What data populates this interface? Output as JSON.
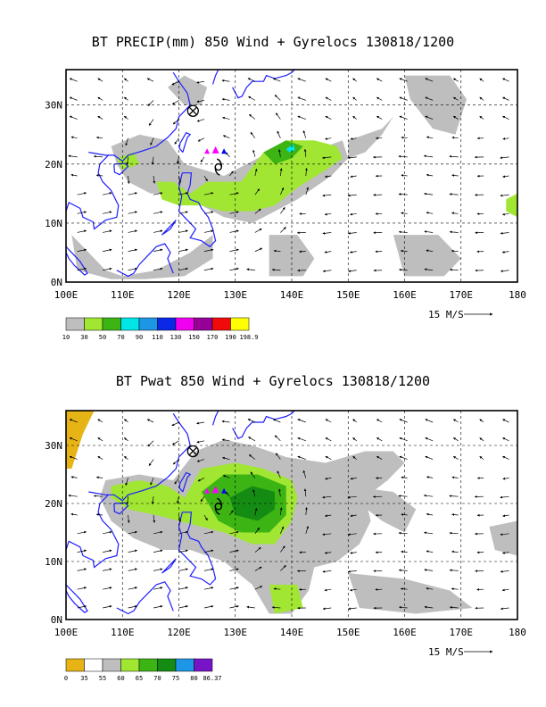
{
  "panels": [
    {
      "title": "BT PRECIP(mm) 850 Wind + Gyrelocs 130818/1200",
      "lat_labels": [
        "30N",
        "20N",
        "10N",
        "0N"
      ],
      "lon_labels": [
        "100E",
        "110E",
        "120E",
        "130E",
        "140E",
        "150E",
        "160E",
        "170E",
        "180"
      ],
      "vector_ref": "15 M/S",
      "colorbar": {
        "colors": [
          "#bebebe",
          "#a0e632",
          "#3cb414",
          "#00e6e6",
          "#1e96e6",
          "#0a28e6",
          "#f000f0",
          "#960096",
          "#f00a0a",
          "#ffff00"
        ],
        "labels": [
          "10",
          "30",
          "50",
          "70",
          "90",
          "110",
          "130",
          "150",
          "170",
          "190",
          "198.9"
        ]
      }
    },
    {
      "title": "BT Pwat 850 Wind + Gyrelocs 130818/1200",
      "lat_labels": [
        "30N",
        "20N",
        "10N",
        "0N"
      ],
      "lon_labels": [
        "100E",
        "110E",
        "120E",
        "130E",
        "140E",
        "150E",
        "160E",
        "170E",
        "180"
      ],
      "vector_ref": "15 M/S",
      "colorbar": {
        "colors": [
          "#e6b414",
          "#ffffff",
          "#bebebe",
          "#a0e632",
          "#3cb414",
          "#148c14",
          "#1e96e6",
          "#7814c8"
        ],
        "labels": [
          "0",
          "35",
          "55",
          "60",
          "65",
          "70",
          "75",
          "80",
          "86.37"
        ]
      }
    }
  ],
  "markers": {
    "storm": "tropical-cyclone-symbol",
    "gyre": "circle-x-symbol",
    "triangle_colors": [
      "#ff00ff",
      "#0000ff"
    ]
  },
  "chart_data": [
    {
      "type": "heatmap",
      "title": "BT PRECIP(mm) 850 Wind + Gyrelocs 130818/1200",
      "xlabel": "",
      "ylabel": "",
      "xlim": [
        100,
        180
      ],
      "ylim": [
        0,
        36
      ],
      "x_ticks": [
        100,
        110,
        120,
        130,
        140,
        150,
        160,
        170,
        180
      ],
      "y_ticks": [
        0,
        10,
        20,
        30
      ],
      "grid": true,
      "field": "precipitation (mm)",
      "levels": [
        10,
        30,
        50,
        70,
        90,
        110,
        130,
        150,
        170,
        190,
        198.9
      ],
      "gyre_center": {
        "lon": 122.5,
        "lat": 29
      },
      "storm_center": {
        "lon": 127,
        "lat": 19.5
      },
      "regions": [
        {
          "name": "p-gray-scs",
          "level": 10,
          "pts": [
            [
              108,
              23
            ],
            [
              113,
              25
            ],
            [
              118,
              24
            ],
            [
              121,
              20
            ],
            [
              128,
              18
            ],
            [
              136,
              22
            ],
            [
              142,
              24
            ],
            [
              146,
              23
            ],
            [
              149,
              24
            ],
            [
              150,
              21
            ],
            [
              147,
              18
            ],
            [
              141,
              14
            ],
            [
              137,
              12
            ],
            [
              133,
              10
            ],
            [
              128,
              11
            ],
            [
              124,
              13
            ],
            [
              121,
              14
            ],
            [
              118,
              15
            ],
            [
              115,
              15
            ],
            [
              111,
              17
            ],
            [
              109,
              20
            ]
          ]
        },
        {
          "name": "p-gray-east",
          "level": 10,
          "pts": [
            [
              150,
              24
            ],
            [
              156,
              26
            ],
            [
              158,
              28
            ],
            [
              156,
              25
            ],
            [
              153,
              22
            ],
            [
              150,
              21
            ]
          ]
        },
        {
          "name": "p-gray-north",
          "level": 10,
          "pts": [
            [
              118,
              33
            ],
            [
              121,
              35
            ],
            [
              125,
              33
            ],
            [
              124,
              30
            ],
            [
              121,
              30
            ]
          ]
        },
        {
          "name": "p-gray-sw",
          "level": 10,
          "pts": [
            [
              101,
              8
            ],
            [
              103,
              6
            ],
            [
              107,
              2
            ],
            [
              110,
              1
            ],
            [
              116,
              2
            ],
            [
              122,
              5
            ],
            [
              126,
              8
            ],
            [
              126,
              4
            ],
            [
              121,
              1
            ],
            [
              114,
              0.5
            ],
            [
              108,
              0.5
            ],
            [
              102,
              2
            ]
          ]
        },
        {
          "name": "p-gray-mid",
          "level": 10,
          "pts": [
            [
              136,
              8
            ],
            [
              141,
              8
            ],
            [
              144,
              4
            ],
            [
              142,
              1
            ],
            [
              136,
              1
            ]
          ]
        },
        {
          "name": "p-gray-ne",
          "level": 10,
          "pts": [
            [
              160,
              35
            ],
            [
              168,
              35
            ],
            [
              171,
              31
            ],
            [
              169,
              25
            ],
            [
              165,
              26
            ],
            [
              161,
              31
            ]
          ]
        },
        {
          "name": "p-gray-se",
          "level": 10,
          "pts": [
            [
              158,
              8
            ],
            [
              166,
              8
            ],
            [
              170,
              4
            ],
            [
              167,
              1
            ],
            [
              160,
              1
            ]
          ]
        },
        {
          "name": "p-green",
          "level": 30,
          "pts": [
            [
              116,
              17
            ],
            [
              119,
              17
            ],
            [
              122,
              15
            ],
            [
              125,
              17
            ],
            [
              131,
              17
            ],
            [
              135,
              22
            ],
            [
              139,
              24
            ],
            [
              144,
              24
            ],
            [
              148,
              23
            ],
            [
              149,
              21
            ],
            [
              146,
              19
            ],
            [
              141,
              16
            ],
            [
              137,
              13
            ],
            [
              133,
              12
            ],
            [
              128,
              12
            ],
            [
              124,
              13
            ],
            [
              120,
              13
            ],
            [
              117,
              14
            ]
          ]
        },
        {
          "name": "p-green-scs",
          "level": 30,
          "pts": [
            [
              109,
              21
            ],
            [
              112,
              22
            ],
            [
              113,
              20
            ],
            [
              110,
              19
            ]
          ]
        },
        {
          "name": "p-green-e",
          "level": 30,
          "pts": [
            [
              178,
              14
            ],
            [
              180,
              15
            ],
            [
              180,
              11
            ],
            [
              178,
              12
            ]
          ]
        },
        {
          "name": "p-dgreen",
          "level": 50,
          "pts": [
            [
              135,
              22
            ],
            [
              139,
              24
            ],
            [
              142,
              23
            ],
            [
              140,
              21
            ],
            [
              137,
              20
            ]
          ]
        },
        {
          "name": "p-cyan",
          "level": 70,
          "pts": [
            [
              139,
              22.5
            ],
            [
              140.2,
              23.4
            ],
            [
              140.6,
              22.4
            ],
            [
              139.6,
              22
            ]
          ]
        }
      ],
      "wind": {
        "vector_ref": "15 M/S"
      }
    },
    {
      "type": "heatmap",
      "title": "BT Pwat 850 Wind + Gyrelocs 130818/1200",
      "xlabel": "",
      "ylabel": "",
      "xlim": [
        100,
        180
      ],
      "ylim": [
        0,
        36
      ],
      "x_ticks": [
        100,
        110,
        120,
        130,
        140,
        150,
        160,
        170,
        180
      ],
      "y_ticks": [
        0,
        10,
        20,
        30
      ],
      "grid": true,
      "field": "precipitable water",
      "levels": [
        0,
        35,
        55,
        60,
        65,
        70,
        75,
        80,
        86.37
      ],
      "gyre_center": {
        "lon": 122.5,
        "lat": 29
      },
      "storm_center": {
        "lon": 127,
        "lat": 19.5
      },
      "regions": [
        {
          "name": "w-gold",
          "level": 0,
          "pts": [
            [
              100,
              36
            ],
            [
              105,
              36
            ],
            [
              103,
              32
            ],
            [
              101,
              26
            ],
            [
              100,
              26
            ]
          ]
        },
        {
          "name": "w-gray-main",
          "level": 55,
          "pts": [
            [
              107,
              24
            ],
            [
              113,
              25
            ],
            [
              119,
              24
            ],
            [
              123,
              29
            ],
            [
              128,
              31
            ],
            [
              133,
              30
            ],
            [
              139,
              28
            ],
            [
              146,
              27
            ],
            [
              153,
              29
            ],
            [
              158,
              29
            ],
            [
              160,
              27
            ],
            [
              157,
              24
            ],
            [
              153,
              21
            ],
            [
              154,
              17
            ],
            [
              152,
              13
            ],
            [
              148,
              10
            ],
            [
              144,
              9
            ],
            [
              143,
              5
            ],
            [
              140,
              1
            ],
            [
              136,
              1
            ],
            [
              133,
              6
            ],
            [
              128,
              10
            ],
            [
              122,
              12
            ],
            [
              117,
              12
            ],
            [
              112,
              14
            ],
            [
              108,
              17
            ],
            [
              106,
              21
            ]
          ]
        },
        {
          "name": "w-gray-ne",
          "level": 55,
          "pts": [
            [
              150,
              23
            ],
            [
              158,
              22
            ],
            [
              162,
              19
            ],
            [
              160,
              15
            ],
            [
              156,
              17
            ],
            [
              152,
              20
            ]
          ]
        },
        {
          "name": "w-gray-e",
          "level": 55,
          "pts": [
            [
              175,
              16
            ],
            [
              180,
              17
            ],
            [
              180,
              11
            ],
            [
              176,
              12
            ]
          ]
        },
        {
          "name": "w-gray-se",
          "level": 55,
          "pts": [
            [
              150,
              8
            ],
            [
              160,
              7
            ],
            [
              168,
              5
            ],
            [
              172,
              2
            ],
            [
              162,
              1
            ],
            [
              152,
              2
            ]
          ]
        },
        {
          "name": "w-green",
          "level": 60,
          "pts": [
            [
              108,
              23
            ],
            [
              113,
              24
            ],
            [
              118,
              23
            ],
            [
              121,
              21
            ],
            [
              124,
              26
            ],
            [
              130,
              27
            ],
            [
              135,
              26
            ],
            [
              140,
              24
            ],
            [
              141,
              21
            ],
            [
              140,
              17
            ],
            [
              137,
              13
            ],
            [
              133,
              13
            ],
            [
              128,
              15
            ],
            [
              124,
              16
            ],
            [
              120,
              17
            ],
            [
              116,
              18
            ],
            [
              111,
              19
            ],
            [
              108,
              21
            ]
          ]
        },
        {
          "name": "w-green-s",
          "level": 60,
          "pts": [
            [
              136,
              6
            ],
            [
              141,
              6
            ],
            [
              142,
              2
            ],
            [
              137,
              1
            ]
          ]
        },
        {
          "name": "w-dgreen",
          "level": 65,
          "pts": [
            [
              124,
              22
            ],
            [
              128,
              25
            ],
            [
              134,
              25
            ],
            [
              139,
              23
            ],
            [
              139,
              18
            ],
            [
              136,
              15
            ],
            [
              131,
              15
            ],
            [
              127,
              17
            ]
          ]
        },
        {
          "name": "w-ddgreen",
          "level": 70,
          "pts": [
            [
              129,
              21
            ],
            [
              133,
              23
            ],
            [
              137,
              22
            ],
            [
              137,
              19
            ],
            [
              134,
              17
            ],
            [
              130,
              18
            ]
          ]
        }
      ],
      "wind": {
        "vector_ref": "15 M/S"
      }
    }
  ]
}
